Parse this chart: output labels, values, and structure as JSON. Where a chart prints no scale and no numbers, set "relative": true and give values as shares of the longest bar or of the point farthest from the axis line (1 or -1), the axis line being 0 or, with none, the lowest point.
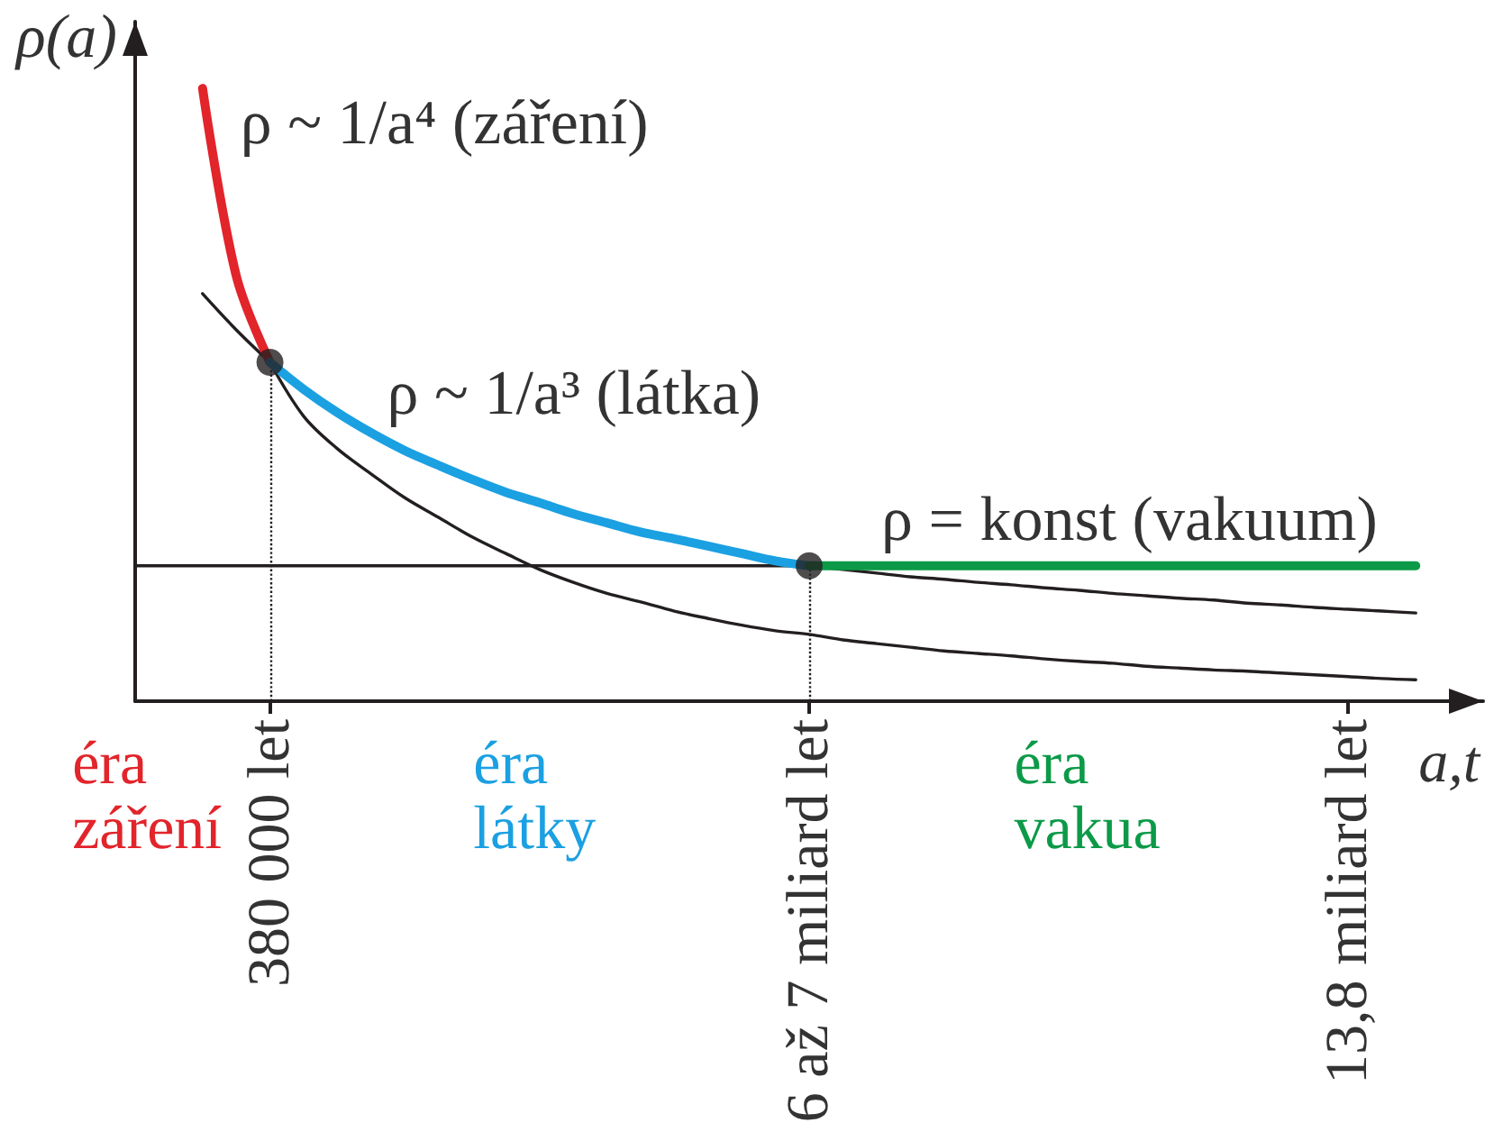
{
  "chart_data": {
    "type": "line",
    "relative": true,
    "xlabel": "a,t",
    "ylabel": "ρ(a)",
    "marker": "none",
    "categories": [
      null,
      null,
      null,
      null,
      "380 000 let",
      null,
      null,
      null,
      null,
      null,
      null,
      null,
      null,
      null,
      null,
      null,
      null,
      null,
      null,
      null,
      "6 až 7 miliard let",
      null,
      null,
      null,
      null,
      null,
      null,
      null,
      null,
      null,
      null,
      null,
      null,
      null,
      null,
      null,
      "13,8 miliard let",
      null,
      null,
      null,
      null
    ],
    "series": [
      {
        "color": "#231f20",
        "values": [
          0.221,
          0.221,
          0.221,
          0.221,
          0.221,
          0.221,
          0.221,
          0.221,
          0.221,
          0.221,
          0.221,
          0.221,
          0.221,
          0.221,
          0.221,
          0.221,
          0.221,
          0.221,
          0.221,
          0.221,
          0.221,
          null,
          null,
          null,
          null,
          null,
          null,
          null,
          null,
          null,
          null,
          null,
          null,
          null,
          null,
          null,
          null,
          null,
          null,
          null,
          null
        ]
      },
      {
        "color": "#231f20",
        "values": [
          null,
          null,
          0.665,
          0.606,
          0.553,
          null,
          null,
          null,
          null,
          null,
          null,
          null,
          null,
          null,
          null,
          null,
          null,
          null,
          null,
          null,
          0.221,
          0.215,
          0.209,
          0.203,
          0.199,
          0.194,
          0.19,
          0.185,
          0.181,
          0.176,
          0.172,
          0.168,
          0.165,
          0.16,
          0.157,
          0.153,
          0.15,
          0.147,
          0.144,
          null,
          null
        ]
      },
      {
        "color": "#231f20",
        "values": [
          null,
          null,
          null,
          null,
          0.553,
          0.465,
          0.412,
          0.371,
          0.332,
          0.3,
          0.268,
          0.241,
          0.215,
          0.194,
          0.176,
          0.162,
          0.147,
          0.135,
          0.124,
          0.115,
          0.109,
          0.1,
          0.094,
          0.088,
          0.082,
          0.078,
          0.074,
          0.069,
          0.065,
          0.062,
          0.057,
          0.054,
          0.051,
          0.049,
          0.046,
          0.043,
          0.04,
          0.037,
          0.035,
          null,
          null
        ]
      },
      {
        "name": "ρ ~ 1/a⁴ (záření)",
        "color": "#e2242b",
        "values": [
          null,
          null,
          1,
          0.694,
          0.553,
          null,
          null,
          null,
          null,
          null,
          null,
          null,
          null,
          null,
          null,
          null,
          null,
          null,
          null,
          null,
          null,
          null,
          null,
          null,
          null,
          null,
          null,
          null,
          null,
          null,
          null,
          null,
          null,
          null,
          null,
          null,
          null,
          null,
          null,
          null,
          null
        ]
      },
      {
        "name": "ρ ~ 1/a³ (látka)",
        "color": "#1ba0e2",
        "values": [
          null,
          null,
          null,
          null,
          0.553,
          0.509,
          0.471,
          0.438,
          0.409,
          0.385,
          0.362,
          0.341,
          0.324,
          0.306,
          0.291,
          0.276,
          0.265,
          0.253,
          0.241,
          0.229,
          0.221,
          null,
          null,
          null,
          null,
          null,
          null,
          null,
          null,
          null,
          null,
          null,
          null,
          null,
          null,
          null,
          null,
          null,
          null,
          null,
          null
        ]
      },
      {
        "name": "ρ = konst (vakuum)",
        "color": "#0c9a48",
        "values": [
          null,
          null,
          null,
          null,
          null,
          null,
          null,
          null,
          null,
          null,
          null,
          null,
          null,
          null,
          null,
          null,
          null,
          null,
          null,
          null,
          0.221,
          0.221,
          0.221,
          0.221,
          0.221,
          0.221,
          0.221,
          0.221,
          0.221,
          0.221,
          0.221,
          0.221,
          0.221,
          0.221,
          0.221,
          0.221,
          0.221,
          0.221,
          0.221,
          null,
          null
        ]
      },
      {
        "type": "lollipop",
        "marker": "circle",
        "line_style": "dotted",
        "color": "#231f20",
        "values": [
          null,
          null,
          null,
          null,
          0.553,
          null,
          null,
          null,
          null,
          null,
          null,
          null,
          null,
          null,
          null,
          null,
          null,
          null,
          null,
          null,
          0.221,
          null,
          null,
          null,
          null,
          null,
          null,
          null,
          null,
          null,
          null,
          null,
          null,
          null,
          null,
          null,
          null,
          null,
          null,
          null,
          null
        ]
      }
    ],
    "annotations": [
      "éra\nzáření",
      "éra\nlátky",
      "éra\nvakua"
    ]
  }
}
